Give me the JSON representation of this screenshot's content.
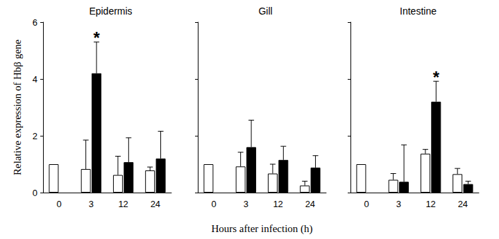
{
  "chart_data": [
    {
      "type": "bar",
      "title": "Epidermis",
      "y_label": "Relative expression of Hbβ gene",
      "categories": [
        "0",
        "3",
        "12",
        "24"
      ],
      "series": [
        {
          "color": "#ffffff",
          "values": [
            1,
            0.83,
            0.62,
            0.78
          ],
          "errors": [
            0,
            1.02,
            0.66,
            0.12
          ]
        },
        {
          "color": "#000000",
          "values": [
            null,
            4.2,
            1.07,
            1.2
          ],
          "errors": [
            null,
            1.1,
            0.86,
            0.96
          ],
          "annotations": [
            {
              "category": "3",
              "text": "*"
            }
          ]
        }
      ],
      "ylim": [
        0,
        6
      ],
      "yticks": [
        0,
        2,
        4,
        6
      ],
      "grid": false
    },
    {
      "type": "bar",
      "title": "Gill",
      "x_label": "Hours after infection (h)",
      "categories": [
        "0",
        "3",
        "12",
        "24"
      ],
      "series": [
        {
          "color": "#ffffff",
          "values": [
            1,
            0.92,
            0.67,
            0.25
          ],
          "errors": [
            0,
            0.5,
            0.33,
            0.15
          ]
        },
        {
          "color": "#000000",
          "values": [
            null,
            1.6,
            1.15,
            0.88
          ],
          "errors": [
            null,
            0.95,
            0.48,
            0.42
          ]
        }
      ],
      "ylim": [
        0,
        6
      ],
      "yticks": [
        0,
        2,
        4,
        6
      ],
      "grid": false,
      "tick_labels": "x"
    },
    {
      "type": "bar",
      "title": "Intestine",
      "categories": [
        "0",
        "3",
        "12",
        "24"
      ],
      "series": [
        {
          "color": "#ffffff",
          "values": [
            1,
            0.45,
            1.37,
            0.65
          ],
          "errors": [
            0,
            0.22,
            0.15,
            0.2
          ]
        },
        {
          "color": "#000000",
          "values": [
            null,
            0.38,
            3.2,
            0.3
          ],
          "errors": [
            null,
            1.3,
            0.72,
            0.1
          ],
          "annotations": [
            {
              "category": "12",
              "text": "*"
            }
          ]
        }
      ],
      "ylim": [
        0,
        6
      ],
      "yticks": [
        0,
        2,
        4,
        6
      ],
      "grid": false,
      "tick_labels": "x"
    }
  ]
}
